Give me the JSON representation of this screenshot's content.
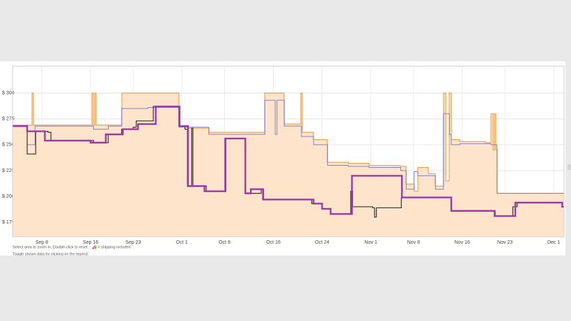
{
  "chart_data": {
    "type": "line",
    "step": true,
    "grid": true,
    "xlim": [
      2.2,
      92.7
    ],
    "ylim": [
      161,
      326
    ],
    "xticks": [
      {
        "value": 7,
        "label": "Sep 8"
      },
      {
        "value": 15,
        "label": "Sep 16"
      },
      {
        "value": 22,
        "label": "Sep 23"
      },
      {
        "value": 30,
        "label": "Oct 1"
      },
      {
        "value": 37,
        "label": "Oct 8"
      },
      {
        "value": 45,
        "label": "Oct 16"
      },
      {
        "value": 53,
        "label": "Oct 24"
      },
      {
        "value": 61,
        "label": "Nov 1"
      },
      {
        "value": 68,
        "label": "Nov 8"
      },
      {
        "value": 76,
        "label": "Nov 16"
      },
      {
        "value": 83,
        "label": "Nov 23"
      },
      {
        "value": 91,
        "label": "Dec 1"
      }
    ],
    "yticks": [
      {
        "value": 175,
        "label": "$ 175"
      },
      {
        "value": 200,
        "label": "$ 200"
      },
      {
        "value": 225,
        "label": "$ 225"
      },
      {
        "value": 250,
        "label": "$ 250"
      },
      {
        "value": 275,
        "label": "$ 275"
      },
      {
        "value": 300,
        "label": "$ 300"
      }
    ],
    "notes": [
      "Select area to zoom in. Double-click to reset.",
      "🚚 = shipping included",
      "Toggle shown data by clicking on the legend."
    ],
    "series": [
      {
        "color": "#f0a448",
        "fill": "#fde4cb",
        "width": 1.2,
        "x": [
          2.2,
          5.29,
          5.4,
          5.63,
          15.11,
          15.23,
          15.46,
          15.69,
          15.91,
          20.14,
          29.4,
          29.51,
          31.0,
          34.43,
          40.14,
          43.57,
          46.77,
          49.4,
          49.51,
          49.74,
          51.57,
          53.86,
          57.29,
          60.71,
          65.86,
          66.77,
          68.14,
          68.71,
          70.43,
          71.57,
          72.94,
          73.29,
          73.86,
          74.2,
          75.57,
          79.8,
          80.71,
          81.06,
          81.29,
          81.51,
          81.74,
          92.71
        ],
        "values": [
          269,
          269,
          300,
          269,
          269,
          300,
          269,
          300,
          269,
          300,
          300,
          268,
          266,
          262,
          262,
          300,
          270,
          270,
          300,
          262,
          255,
          233,
          232,
          230,
          229,
          212,
          205,
          228,
          222,
          210,
          300,
          215,
          300,
          255,
          253,
          252,
          280,
          245,
          280,
          245,
          203,
          203
        ]
      },
      {
        "color": "#7f7fdc",
        "width": 1,
        "x": [
          2.2,
          4.6,
          5.9,
          15.0,
          15.5,
          17.9,
          20.1,
          24.4,
          29.4,
          29.5,
          34.4,
          40.1,
          43.6,
          45.3,
          45.6,
          46.8,
          49.6,
          51.6,
          53.9,
          57.3,
          60.7,
          65.9,
          66.8,
          68.1,
          68.7,
          70.4,
          71.6,
          72.9,
          73.9,
          74.2,
          75.6,
          80.7,
          81.7,
          92.7
        ],
        "values": [
          268,
          250,
          268,
          268,
          265,
          268,
          285,
          286,
          287,
          267,
          260,
          260,
          293,
          260,
          293,
          268,
          258,
          250,
          230,
          229,
          228,
          225,
          207,
          224,
          220,
          220,
          207,
          280,
          260,
          250,
          251,
          250,
          203,
          203
        ]
      },
      {
        "color": "#333333",
        "width": 1.2,
        "x": [
          2.2,
          4.6,
          6.0,
          8.0,
          8.5,
          15.5,
          17.9,
          20.1,
          22.0,
          22.5,
          25.3,
          29.4,
          29.5,
          30.5,
          30.9,
          31.6,
          31.8,
          34.0,
          37.0,
          37.2,
          40.3,
          40.4,
          43.0,
          43.4,
          51.3,
          53.0,
          54.4,
          57.7,
          58.0,
          61.3,
          61.6,
          61.9,
          66.0,
          72.5,
          74.2,
          81.4,
          84.3,
          85.0,
          92.2,
          92.4,
          92.7
        ],
        "values": [
          268,
          241,
          263,
          262,
          254,
          252,
          260,
          265,
          267,
          273,
          287,
          287,
          268,
          265,
          210,
          266,
          210,
          205,
          205,
          256,
          256,
          203,
          207,
          197,
          193,
          188,
          183,
          205,
          190,
          189,
          180,
          189,
          199,
          199,
          186,
          181,
          190,
          194,
          194,
          190,
          190
        ]
      },
      {
        "color": "#9b3aa6",
        "width": 2.4,
        "x": [
          2.2,
          4.6,
          7.5,
          15.0,
          17.5,
          20.3,
          22.8,
          25.7,
          29.6,
          31.0,
          33.7,
          37.1,
          40.4,
          41.3,
          43.3,
          51.6,
          53.0,
          54.4,
          57.9,
          66.1,
          72.4,
          74.2,
          81.3,
          84.7,
          92.4,
          92.7
        ],
        "values": [
          268,
          263,
          254,
          252,
          260,
          265,
          270,
          287,
          268,
          210,
          205,
          256,
          203,
          207,
          197,
          193,
          188,
          183,
          220,
          199,
          199,
          186,
          181,
          194,
          190,
          190
        ]
      }
    ]
  }
}
